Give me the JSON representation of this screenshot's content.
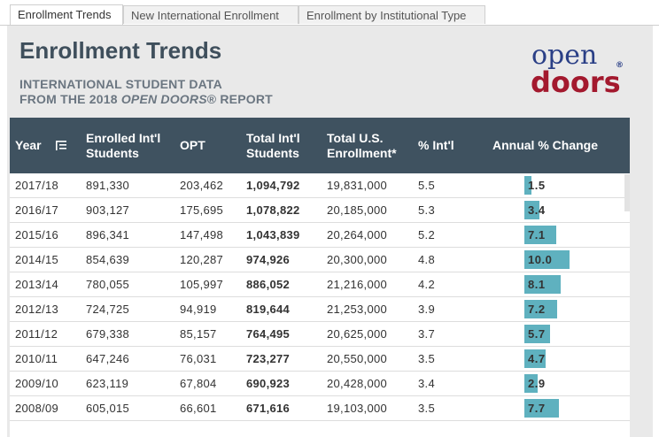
{
  "tabs": [
    "Enrollment Trends",
    "New International Enrollment",
    "Enrollment by Institutional Type"
  ],
  "header": {
    "title": "Enrollment Trends",
    "subtitle_line1": "INTERNATIONAL STUDENT DATA",
    "subtitle_line2_pre": "FROM THE 2018 ",
    "subtitle_line2_em": "OPEN DOORS",
    "subtitle_line2_post": "® REPORT"
  },
  "logo": {
    "word1": "open",
    "word2": "doors",
    "mark": "®",
    "color_blue": "#2a3f86",
    "color_red": "#a3192e"
  },
  "table": {
    "columns": [
      "Year",
      "Enrolled Int'l\nStudents",
      "OPT",
      "Total Int'l\nStudents",
      "Total U.S.\nEnrollment*",
      "% Int'l",
      "Annual % Change"
    ],
    "bar_max": 10.0,
    "rows": [
      {
        "year": "2017/18",
        "enrolled": "891,330",
        "opt": "203,462",
        "total": "1,094,792",
        "us": "19,831,000",
        "pct": "5.5",
        "change": "1.5",
        "change_value": 1.5
      },
      {
        "year": "2016/17",
        "enrolled": "903,127",
        "opt": "175,695",
        "total": "1,078,822",
        "us": "20,185,000",
        "pct": "5.3",
        "change": "3.4",
        "change_value": 3.4
      },
      {
        "year": "2015/16",
        "enrolled": "896,341",
        "opt": "147,498",
        "total": "1,043,839",
        "us": "20,264,000",
        "pct": "5.2",
        "change": "7.1",
        "change_value": 7.1
      },
      {
        "year": "2014/15",
        "enrolled": "854,639",
        "opt": "120,287",
        "total": "974,926",
        "us": "20,300,000",
        "pct": "4.8",
        "change": "10.0",
        "change_value": 10.0
      },
      {
        "year": "2013/14",
        "enrolled": "780,055",
        "opt": "105,997",
        "total": "886,052",
        "us": "21,216,000",
        "pct": "4.2",
        "change": "8.1",
        "change_value": 8.1
      },
      {
        "year": "2012/13",
        "enrolled": "724,725",
        "opt": "94,919",
        "total": "819,644",
        "us": "21,253,000",
        "pct": "3.9",
        "change": "7.2",
        "change_value": 7.2
      },
      {
        "year": "2011/12",
        "enrolled": "679,338",
        "opt": "85,157",
        "total": "764,495",
        "us": "20,625,000",
        "pct": "3.7",
        "change": "5.7",
        "change_value": 5.7
      },
      {
        "year": "2010/11",
        "enrolled": "647,246",
        "opt": "76,031",
        "total": "723,277",
        "us": "20,550,000",
        "pct": "3.5",
        "change": "4.7",
        "change_value": 4.7
      },
      {
        "year": "2009/10",
        "enrolled": "623,119",
        "opt": "67,804",
        "total": "690,923",
        "us": "20,428,000",
        "pct": "3.4",
        "change": "2.9",
        "change_value": 2.9
      },
      {
        "year": "2008/09",
        "enrolled": "605,015",
        "opt": "66,601",
        "total": "671,616",
        "us": "19,103,000",
        "pct": "3.5",
        "change": "7.7",
        "change_value": 7.7
      }
    ]
  }
}
